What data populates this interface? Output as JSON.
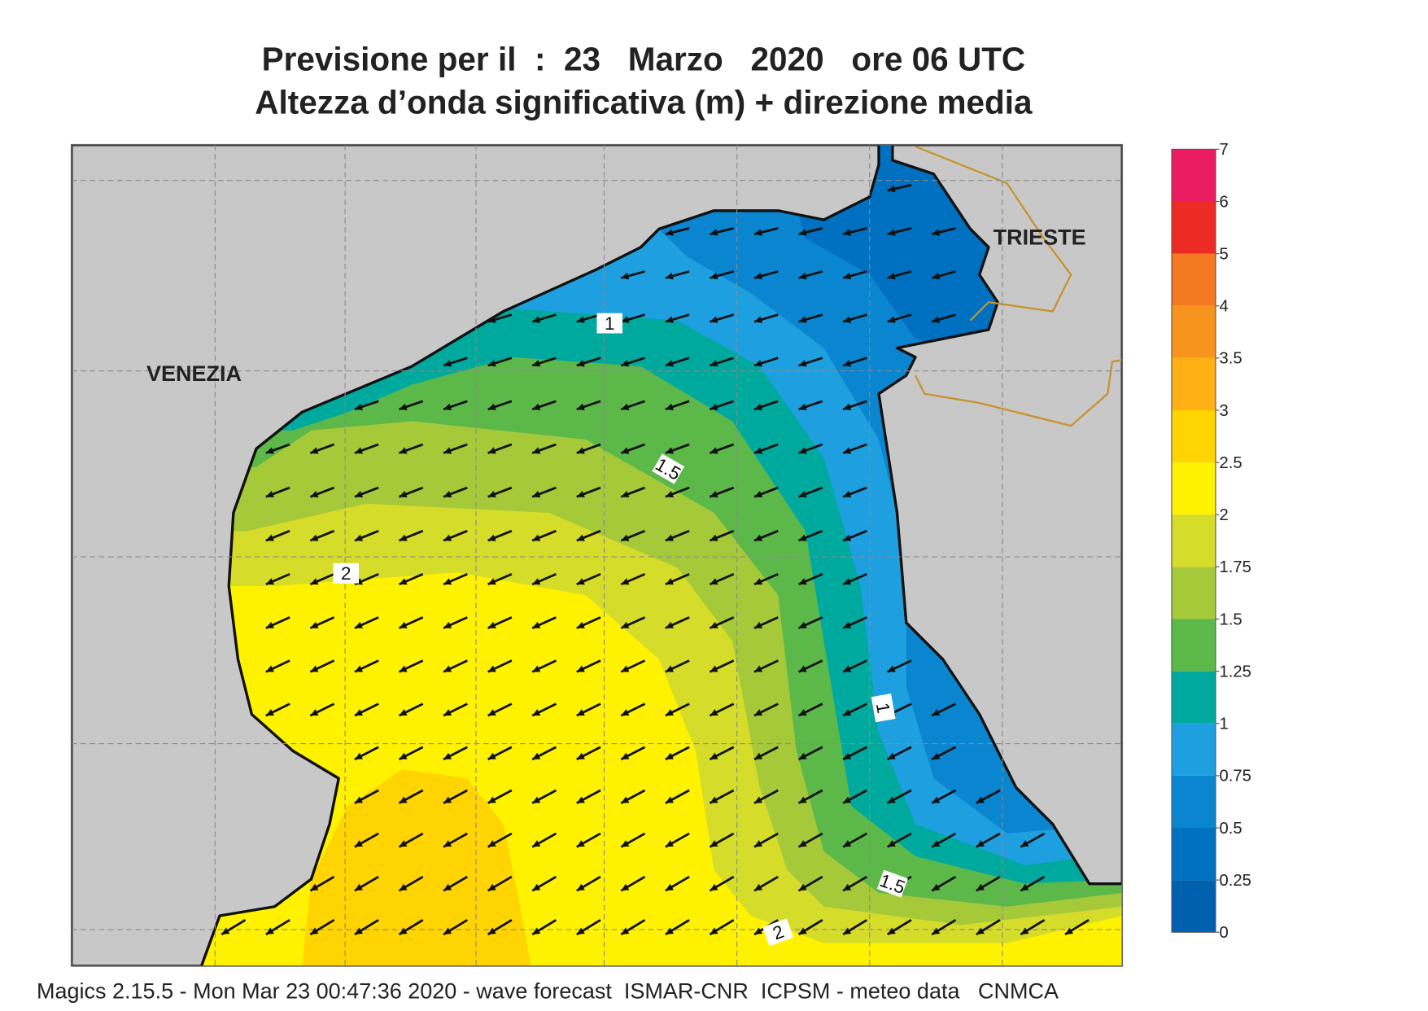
{
  "header": {
    "title": "Previsione per il  :  23   Marzo   2020   ore 06 UTC",
    "subtitle": "Altezza d’onda significativa (m) + direzione media"
  },
  "map": {
    "places": [
      "VENEZIA",
      "TRIESTE"
    ],
    "contour_labels": [
      1,
      1.5,
      2,
      1,
      1.5,
      2
    ]
  },
  "colorbar": {
    "levels": [
      0,
      0.25,
      0.5,
      0.75,
      1,
      1.25,
      1.5,
      1.75,
      2,
      2.5,
      3,
      3.5,
      4,
      5,
      6,
      7
    ],
    "colors": [
      "#0060b0",
      "#0070c0",
      "#0a85cf",
      "#1ea0e0",
      "#00a99d",
      "#5db84a",
      "#a6c93a",
      "#d6dc2a",
      "#fff200",
      "#ffd400",
      "#ffb014",
      "#f7941d",
      "#f47920",
      "#ee2a24",
      "#ec1c62"
    ]
  },
  "footer": "Magics 2.15.5 - Mon Mar 23 00:47:36 2020 - wave forecast  ISMAR-CNR  ICPSM - meteo data   CNMCA"
}
